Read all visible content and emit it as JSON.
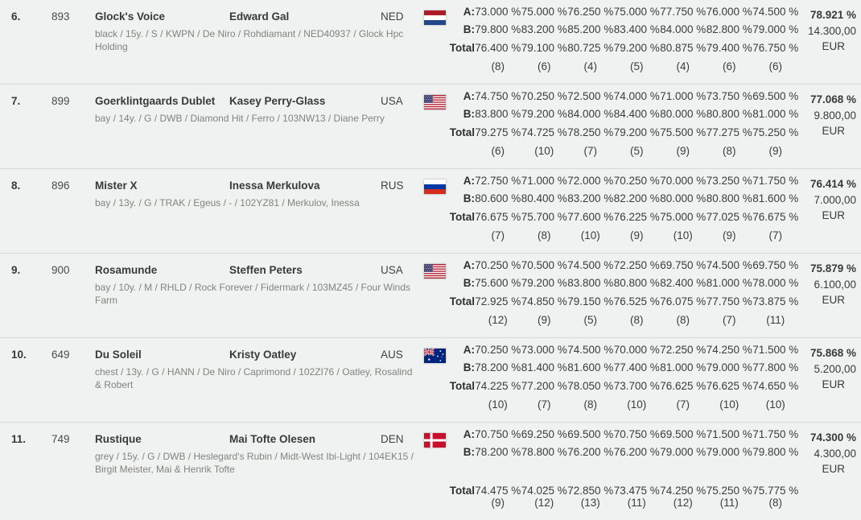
{
  "labels": {
    "a": "A:",
    "b": "B:",
    "total": "Total",
    "currency": "EUR"
  },
  "rows": [
    {
      "rank": "6.",
      "number": "893",
      "horse": "Glock's Voice",
      "rider": "Edward Gal",
      "nation": "NED",
      "flag": "ned",
      "details": "black / 15y. / S / KWPN / De Niro / Rohdiamant / NED40937 / Glock Hpc Holding",
      "a": [
        "73.000 %",
        "75.000 %",
        "76.250 %",
        "75.000 %",
        "77.750 %",
        "76.000 %",
        "74.500 %"
      ],
      "b": [
        "79.800 %",
        "83.200 %",
        "85.200 %",
        "83.400 %",
        "84.000 %",
        "82.800 %",
        "79.000 %"
      ],
      "total": [
        "76.400 %",
        "79.100 %",
        "80.725 %",
        "79.200 %",
        "80.875 %",
        "79.400 %",
        "76.750 %"
      ],
      "ranks": [
        "(8)",
        "(6)",
        "(4)",
        "(5)",
        "(4)",
        "(6)",
        "(6)"
      ],
      "final_percent": "78.921 %",
      "prize": "14.300,00",
      "wrap": false
    },
    {
      "rank": "7.",
      "number": "899",
      "horse": "Goerklintgaards Dublet",
      "rider": "Kasey Perry-Glass",
      "nation": "USA",
      "flag": "usa",
      "details": "bay / 14y. / G / DWB / Diamond Hit / Ferro / 103NW13 / Diane Perry",
      "a": [
        "74.750 %",
        "70.250 %",
        "72.500 %",
        "74.000 %",
        "71.000 %",
        "73.750 %",
        "69.500 %"
      ],
      "b": [
        "83.800 %",
        "79.200 %",
        "84.000 %",
        "84.400 %",
        "80.000 %",
        "80.800 %",
        "81.000 %"
      ],
      "total": [
        "79.275 %",
        "74.725 %",
        "78.250 %",
        "79.200 %",
        "75.500 %",
        "77.275 %",
        "75.250 %"
      ],
      "ranks": [
        "(6)",
        "(10)",
        "(7)",
        "(5)",
        "(9)",
        "(8)",
        "(9)"
      ],
      "final_percent": "77.068 %",
      "prize": "9.800,00",
      "wrap": false
    },
    {
      "rank": "8.",
      "number": "896",
      "horse": "Mister X",
      "rider": "Inessa Merkulova",
      "nation": "RUS",
      "flag": "rus",
      "details": "bay / 13y. / G / TRAK / Egeus / - / 102YZ81 / Merkulov, Inessa",
      "a": [
        "72.750 %",
        "71.000 %",
        "72.000 %",
        "70.250 %",
        "70.000 %",
        "73.250 %",
        "71.750 %"
      ],
      "b": [
        "80.600 %",
        "80.400 %",
        "83.200 %",
        "82.200 %",
        "80.000 %",
        "80.800 %",
        "81.600 %"
      ],
      "total": [
        "76.675 %",
        "75.700 %",
        "77.600 %",
        "76.225 %",
        "75.000 %",
        "77.025 %",
        "76.675 %"
      ],
      "ranks": [
        "(7)",
        "(8)",
        "(10)",
        "(9)",
        "(10)",
        "(9)",
        "(7)"
      ],
      "final_percent": "76.414 %",
      "prize": "7.000,00",
      "wrap": false
    },
    {
      "rank": "9.",
      "number": "900",
      "horse": "Rosamunde",
      "rider": "Steffen Peters",
      "nation": "USA",
      "flag": "usa",
      "details": "bay / 10y. / M / RHLD / Rock Forever / Fidermark / 103MZ45 / Four Winds Farm",
      "a": [
        "70.250 %",
        "70.500 %",
        "74.500 %",
        "72.250 %",
        "69.750 %",
        "74.500 %",
        "69.750 %"
      ],
      "b": [
        "75.600 %",
        "79.200 %",
        "83.800 %",
        "80.800 %",
        "82.400 %",
        "81.000 %",
        "78.000 %"
      ],
      "total": [
        "72.925 %",
        "74.850 %",
        "79.150 %",
        "76.525 %",
        "76.075 %",
        "77.750 %",
        "73.875 %"
      ],
      "ranks": [
        "(12)",
        "(9)",
        "(5)",
        "(8)",
        "(8)",
        "(7)",
        "(11)"
      ],
      "final_percent": "75.879 %",
      "prize": "6.100,00",
      "wrap": false
    },
    {
      "rank": "10.",
      "number": "649",
      "horse": "Du Soleil",
      "rider": "Kristy Oatley",
      "nation": "AUS",
      "flag": "aus",
      "details": "chest / 13y. / G / HANN / De Niro / Caprimond / 102ZI76 / Oatley, Rosalind & Robert",
      "a": [
        "70.250 %",
        "73.000 %",
        "74.500 %",
        "70.000 %",
        "72.250 %",
        "74.250 %",
        "71.500 %"
      ],
      "b": [
        "78.200 %",
        "81.400 %",
        "81.600 %",
        "77.400 %",
        "81.000 %",
        "79.000 %",
        "77.800 %"
      ],
      "total": [
        "74.225 %",
        "77.200 %",
        "78.050 %",
        "73.700 %",
        "76.625 %",
        "76.625 %",
        "74.650 %"
      ],
      "ranks": [
        "(10)",
        "(7)",
        "(8)",
        "(10)",
        "(7)",
        "(10)",
        "(10)"
      ],
      "final_percent": "75.868 %",
      "prize": "5.200,00",
      "wrap": false
    },
    {
      "rank": "11.",
      "number": "749",
      "horse": "Rustique",
      "rider": "Mai Tofte Olesen",
      "nation": "DEN",
      "flag": "den",
      "details": "grey / 15y. / G / DWB / Heslegard's Rubin / Midt-West Ibi-Light / 104EK15 / Birgit Meister, Mai & Henrik Tofte",
      "a": [
        "70.750 %",
        "69.250 %",
        "69.500 %",
        "70.750 %",
        "69.500 %",
        "71.500 %",
        "71.750 %"
      ],
      "b": [
        "78.200 %",
        "78.800 %",
        "76.200 %",
        "76.200 %",
        "79.000 %",
        "79.000 %",
        "79.800 %"
      ],
      "total": [
        "74.475 %",
        "74.025 %",
        "72.850 %",
        "73.475 %",
        "74.250 %",
        "75.250 %",
        "75.775 %"
      ],
      "ranks": [
        "(9)",
        "(12)",
        "(13)",
        "(11)",
        "(12)",
        "(11)",
        "(8)"
      ],
      "final_percent": "74.300 %",
      "prize": "4.300,00",
      "wrap": true
    }
  ]
}
